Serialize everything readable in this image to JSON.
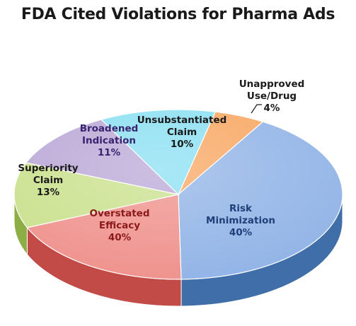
{
  "chart_data": {
    "type": "pie",
    "title": "FDA Cited Violations for Pharma Ads",
    "slices": [
      {
        "label_lines": [
          "Unapproved",
          "Use/Drug"
        ],
        "value_text": "4%",
        "value": 4,
        "color": "#f8a55f",
        "side_color": "#d9823a",
        "label_color": "#1a1a1a"
      },
      {
        "label_lines": [
          "Risk",
          "Minimization"
        ],
        "value_text": "40%",
        "value": 40,
        "color": "#8fb2e6",
        "side_color": "#3f6ea8",
        "label_color": "#1f3f78"
      },
      {
        "label_lines": [
          "Overstated",
          "Efficacy"
        ],
        "value_text": "40%",
        "value": 40,
        "color": "#ef8f8a",
        "side_color": "#c24a47",
        "label_color": "#8b1a1a"
      },
      {
        "label_lines": [
          "Superiority",
          "Claim"
        ],
        "value_text": "13%",
        "value": 13,
        "color": "#c9e08a",
        "side_color": "#8cae45",
        "label_color": "#1a1a1a"
      },
      {
        "label_lines": [
          "Broadened",
          "Indication"
        ],
        "value_text": "11%",
        "value": 11,
        "color": "#b9a6d6",
        "side_color": "#7f67a8",
        "label_color": "#3a2470"
      },
      {
        "label_lines": [
          "Unsubstantiated",
          "Claim"
        ],
        "value_text": "10%",
        "value": 10,
        "color": "#88dff2",
        "side_color": "#3fa9c4",
        "label_color": "#1a1a1a"
      }
    ]
  }
}
